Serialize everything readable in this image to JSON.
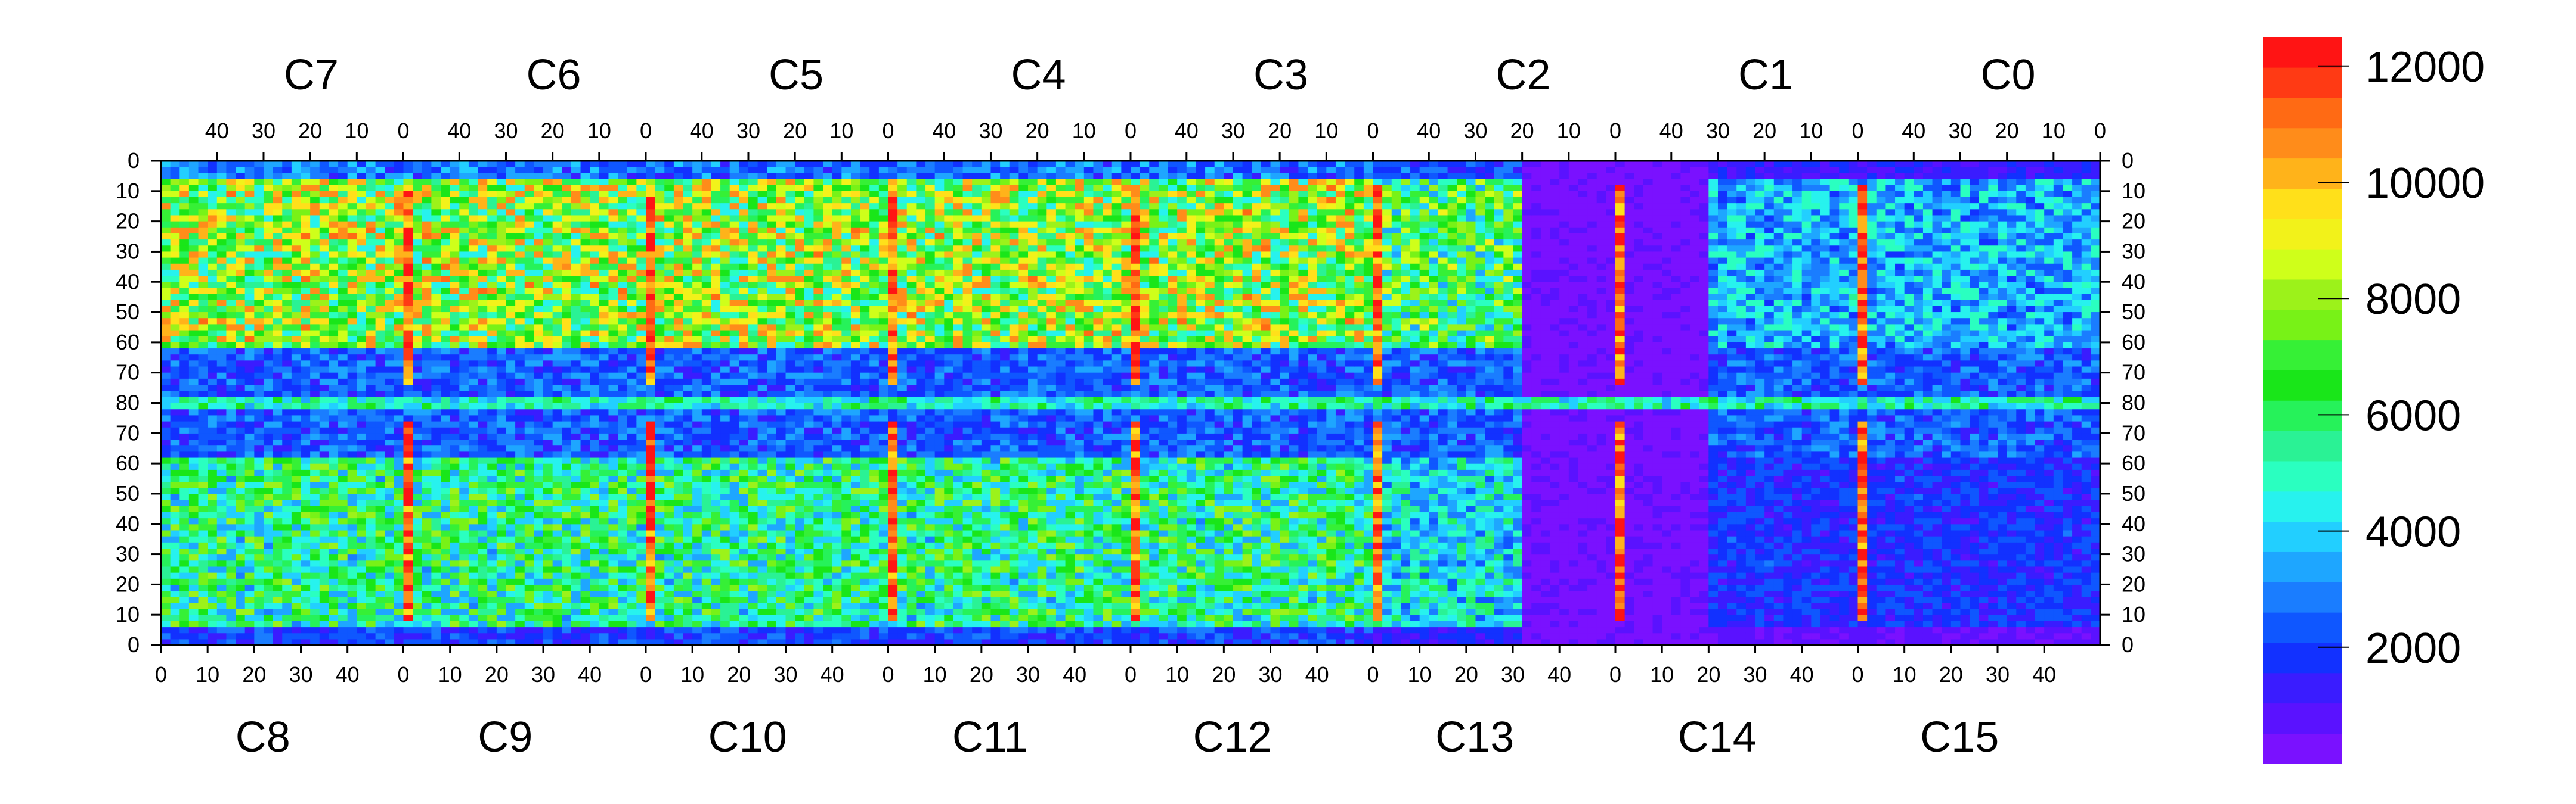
{
  "chart_data": {
    "type": "heatmap",
    "title": "",
    "xlabel": "",
    "ylabel": "",
    "colormap": [
      "#7a11ff",
      "#5a12ff",
      "#3a1cff",
      "#1231ff",
      "#0f57ff",
      "#1a7dff",
      "#1ea6ff",
      "#22cfff",
      "#27f2ee",
      "#2affc0",
      "#2af295",
      "#26f25a",
      "#19e619",
      "#36f036",
      "#78f217",
      "#9cf21a",
      "#cfff1a",
      "#f2f21a",
      "#ffe01a",
      "#ffb31a",
      "#ff8c1a",
      "#ff6a14",
      "#ff3a14",
      "#ff1414"
    ],
    "colorbar": {
      "min": 0,
      "max": 12500,
      "ticks": [
        2000,
        4000,
        6000,
        8000,
        10000,
        12000
      ]
    },
    "grid": false,
    "top_chips": [
      "C7",
      "C6",
      "C5",
      "C4",
      "C3",
      "C2",
      "C1",
      "C0"
    ],
    "bottom_chips": [
      "C8",
      "C9",
      "C10",
      "C11",
      "C12",
      "C13",
      "C14",
      "C15"
    ],
    "top_axis_ticks": [
      "40",
      "30",
      "20",
      "10",
      "0"
    ],
    "bottom_axis_ticks": [
      "0",
      "10",
      "20",
      "30",
      "40"
    ],
    "left_axis_ticks": [
      "0",
      "10",
      "20",
      "30",
      "40",
      "50",
      "60",
      "70",
      "80",
      "70",
      "60",
      "50",
      "40",
      "30",
      "20",
      "10",
      "0"
    ],
    "right_axis_ticks": [
      "0",
      "10",
      "20",
      "30",
      "40",
      "50",
      "60",
      "70",
      "80",
      "70",
      "60",
      "50",
      "40",
      "30",
      "20",
      "10",
      "0"
    ],
    "chip_columns": 52,
    "chip_rows": 80,
    "region_levels": {
      "upper_band_chips_0_4": 7600,
      "upper_band_chip_5": 6200,
      "upper_band_chips_6_7": 3600,
      "middle_band": 2400,
      "lower_band_chips_0_4": 5600,
      "lower_band_chip_5": 4300,
      "lower_band_chips_6_7": 1800,
      "quiet_area_chips_5_6": 400,
      "edge_strip_between_chips": 11200,
      "central_row_80": 5000
    }
  }
}
